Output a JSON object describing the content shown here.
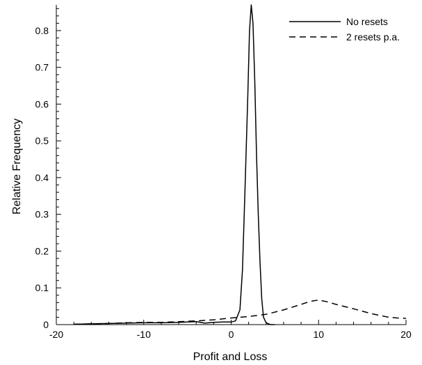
{
  "chart_data": {
    "type": "line",
    "title": "",
    "xlabel": "Profit and Loss",
    "ylabel": "Relative Frequency",
    "xlim": [
      -20,
      20
    ],
    "ylim": [
      0,
      0.87
    ],
    "xticks": [
      -20,
      -10,
      0,
      10,
      20
    ],
    "xtick_labels": [
      "-20",
      "-10",
      "0",
      "10",
      "20"
    ],
    "yticks": [
      0,
      0.1,
      0.2,
      0.3,
      0.4,
      0.5,
      0.6,
      0.7,
      0.8
    ],
    "ytick_labels": [
      "0",
      "0.1",
      "0.2",
      "0.3",
      "0.4",
      "0.5",
      "0.6",
      "0.7",
      "0.8"
    ],
    "grid": false,
    "legend_position": "top-right",
    "series": [
      {
        "name": "No resets",
        "style": "solid",
        "x": [
          -18,
          -16,
          -14,
          -12,
          -10,
          -8,
          -6,
          -4,
          -3,
          -2,
          -1,
          0,
          0.5,
          1.0,
          1.3,
          1.6,
          1.9,
          2.1,
          2.3,
          2.5,
          2.7,
          2.9,
          3.1,
          3.3,
          3.5,
          3.7,
          4.0,
          4.5,
          5.0
        ],
        "y": [
          0.001,
          0.002,
          0.003,
          0.004,
          0.005,
          0.005,
          0.006,
          0.008,
          0.004,
          0.006,
          0.007,
          0.007,
          0.01,
          0.04,
          0.15,
          0.38,
          0.62,
          0.8,
          0.87,
          0.82,
          0.66,
          0.46,
          0.3,
          0.17,
          0.07,
          0.02,
          0.005,
          0.0,
          0.0
        ]
      },
      {
        "name": "2 resets p.a.",
        "style": "dashed",
        "x": [
          -18,
          -16,
          -14,
          -12,
          -10,
          -8,
          -6,
          -4,
          -2,
          0,
          2,
          4,
          6,
          8,
          9,
          10,
          11,
          12,
          14,
          16,
          18,
          19,
          20
        ],
        "y": [
          0.001,
          0.002,
          0.003,
          0.005,
          0.006,
          0.006,
          0.008,
          0.01,
          0.013,
          0.018,
          0.022,
          0.028,
          0.04,
          0.055,
          0.063,
          0.067,
          0.062,
          0.055,
          0.043,
          0.03,
          0.02,
          0.018,
          0.017
        ]
      }
    ]
  }
}
